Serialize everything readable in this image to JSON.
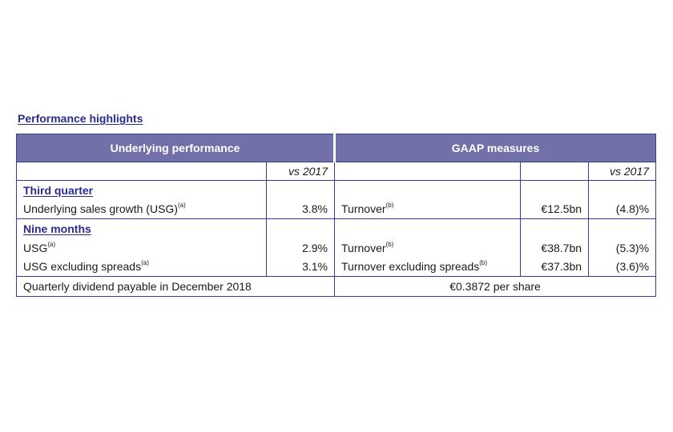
{
  "title": "Performance highlights",
  "header": {
    "left": "Underlying performance",
    "right": "GAAP measures"
  },
  "subheader": {
    "left_compare": "vs 2017",
    "right_compare": "vs 2017"
  },
  "third_quarter": {
    "label": "Third quarter",
    "rows": [
      {
        "metric": "Underlying sales growth (USG)",
        "metric_note": "(a)",
        "value": "3.8%",
        "gaap_metric": "Turnover",
        "gaap_note": "(b)",
        "gaap_value": "€12.5bn",
        "gaap_change": "(4.8)%"
      }
    ]
  },
  "nine_months": {
    "label": "Nine months",
    "rows": [
      {
        "metric": "USG",
        "metric_note": "(a)",
        "value": "2.9%",
        "gaap_metric": "Turnover",
        "gaap_note": "(b)",
        "gaap_value": "€38.7bn",
        "gaap_change": "(5.3)%"
      },
      {
        "metric": "USG excluding spreads",
        "metric_note": "(a)",
        "value": "3.1%",
        "gaap_metric": "Turnover excluding spreads",
        "gaap_note": "(b)",
        "gaap_value": "€37.3bn",
        "gaap_change": "(3.6)%"
      }
    ]
  },
  "dividend": {
    "label": "Quarterly dividend payable in December 2018",
    "value": "€0.3872 per share"
  }
}
